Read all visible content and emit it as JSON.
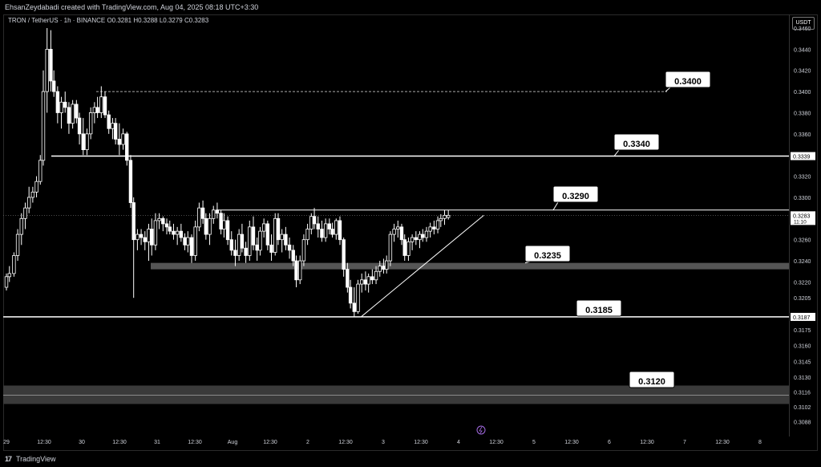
{
  "header": {
    "text": "EhsanZeydabadi created with TradingView.com, Aug 04, 2025 08:18 UTC+3:30"
  },
  "legend": {
    "text": "TRON / TetherUS · 1h · BINANCE  O0.3281  H0.3288  L0.3279  C0.3283"
  },
  "currency_button": "USDT",
  "footer": {
    "logo": "17",
    "brand": "TradingView"
  },
  "colors": {
    "background": "#000000",
    "candle": "#ffffff",
    "level_line": "#ffffff",
    "zone": "#3a3a3a",
    "axis_text": "#d1d4dc"
  },
  "chart_data": {
    "type": "candlestick",
    "title": "",
    "xlabel": "",
    "ylabel": "",
    "ylim": [
      0.308,
      0.346
    ],
    "y_ticks": [
      "0.3460",
      "0.3440",
      "0.3420",
      "0.3400",
      "0.3380",
      "0.3360",
      "0.3339",
      "0.3320",
      "0.3300",
      "0.3283",
      "0.3260",
      "0.3240",
      "0.3220",
      "0.3205",
      "0.3187",
      "0.3175",
      "0.3160",
      "0.3145",
      "0.3130",
      "0.3116",
      "0.3102",
      "0.3088"
    ],
    "x_ticks": [
      "29",
      "12:30",
      "30",
      "12:30",
      "31",
      "12:30",
      "Aug",
      "12:30",
      "2",
      "12:30",
      "3",
      "12:30",
      "4",
      "12:30",
      "5",
      "12:30",
      "6",
      "12:30",
      "7",
      "12:30",
      "8"
    ],
    "price_tags": [
      {
        "text": "0.3339",
        "value": 0.3339
      },
      {
        "text": "0.3283",
        "value": 0.3283,
        "countdown": "11:10"
      },
      {
        "text": "0.3187",
        "value": 0.3187
      }
    ],
    "levels": [
      {
        "label": "0.3400",
        "value": 0.34,
        "style": "dashed"
      },
      {
        "label": "0.3340",
        "value": 0.3339,
        "style": "solid"
      },
      {
        "label": "0.3290",
        "value": 0.3288,
        "style": "solid"
      },
      {
        "label": "0.3235",
        "value": 0.3235,
        "style": "zone"
      },
      {
        "label": "0.3185",
        "value": 0.3187,
        "style": "solid"
      },
      {
        "label": "0.3120",
        "value": 0.3113,
        "style": "zone"
      }
    ],
    "trendline": {
      "from": {
        "x": 47.1,
        "y": 0.3187
      },
      "to": {
        "x": 63.4,
        "y": 0.3283
      }
    },
    "candles": [
      [
        0.0,
        0.3215,
        0.3228,
        0.3212,
        0.3225
      ],
      [
        0.4,
        0.3225,
        0.3235,
        0.322,
        0.3228
      ],
      [
        1.0,
        0.3228,
        0.3248,
        0.3225,
        0.3245
      ],
      [
        1.5,
        0.3245,
        0.327,
        0.324,
        0.3265
      ],
      [
        2.0,
        0.3265,
        0.3285,
        0.3255,
        0.328
      ],
      [
        2.5,
        0.328,
        0.3295,
        0.327,
        0.329
      ],
      [
        3.0,
        0.329,
        0.331,
        0.3285,
        0.33
      ],
      [
        3.5,
        0.33,
        0.331,
        0.3295,
        0.3305
      ],
      [
        4.0,
        0.3305,
        0.332,
        0.33,
        0.3315
      ],
      [
        4.5,
        0.3315,
        0.334,
        0.3312,
        0.3335
      ],
      [
        4.9,
        0.3335,
        0.342,
        0.333,
        0.34
      ],
      [
        5.4,
        0.34,
        0.346,
        0.338,
        0.344
      ],
      [
        5.9,
        0.344,
        0.3458,
        0.34,
        0.341
      ],
      [
        6.3,
        0.341,
        0.342,
        0.3395,
        0.34
      ],
      [
        6.8,
        0.34,
        0.3405,
        0.337,
        0.338
      ],
      [
        7.3,
        0.338,
        0.3395,
        0.3365,
        0.339
      ],
      [
        7.8,
        0.339,
        0.34,
        0.338,
        0.3385
      ],
      [
        8.3,
        0.3385,
        0.339,
        0.336,
        0.337
      ],
      [
        8.8,
        0.337,
        0.3392,
        0.3365,
        0.3388
      ],
      [
        9.3,
        0.3388,
        0.3392,
        0.337,
        0.3375
      ],
      [
        9.7,
        0.3375,
        0.338,
        0.335,
        0.336
      ],
      [
        10.2,
        0.336,
        0.3375,
        0.334,
        0.3345
      ],
      [
        10.7,
        0.3345,
        0.3365,
        0.334,
        0.336
      ],
      [
        11.2,
        0.336,
        0.3385,
        0.3355,
        0.338
      ],
      [
        11.7,
        0.338,
        0.339,
        0.337,
        0.3385
      ],
      [
        12.1,
        0.3385,
        0.3395,
        0.3375,
        0.338
      ],
      [
        12.6,
        0.338,
        0.3405,
        0.3375,
        0.3395
      ],
      [
        13.1,
        0.3395,
        0.34,
        0.3375,
        0.3378
      ],
      [
        13.6,
        0.3378,
        0.3382,
        0.336,
        0.3365
      ],
      [
        14.1,
        0.3365,
        0.3375,
        0.3355,
        0.337
      ],
      [
        14.5,
        0.337,
        0.3375,
        0.335,
        0.3355
      ],
      [
        15.0,
        0.3355,
        0.337,
        0.334,
        0.335
      ],
      [
        15.5,
        0.335,
        0.3365,
        0.3345,
        0.336
      ],
      [
        16.0,
        0.336,
        0.3362,
        0.333,
        0.3335
      ],
      [
        16.5,
        0.3335,
        0.334,
        0.329,
        0.3295
      ],
      [
        16.9,
        0.3295,
        0.33,
        0.3205,
        0.326
      ],
      [
        17.4,
        0.326,
        0.327,
        0.325,
        0.3265
      ],
      [
        17.9,
        0.3265,
        0.327,
        0.3255,
        0.3262
      ],
      [
        18.4,
        0.3262,
        0.3268,
        0.325,
        0.3258
      ],
      [
        18.9,
        0.3258,
        0.3275,
        0.324,
        0.327
      ],
      [
        19.3,
        0.327,
        0.328,
        0.3245,
        0.3255
      ],
      [
        19.8,
        0.3255,
        0.3285,
        0.325,
        0.3278
      ],
      [
        20.3,
        0.3278,
        0.3285,
        0.327,
        0.328
      ],
      [
        20.8,
        0.328,
        0.3282,
        0.3268,
        0.3275
      ],
      [
        21.3,
        0.3275,
        0.328,
        0.3265,
        0.3272
      ],
      [
        21.7,
        0.3272,
        0.3278,
        0.3265,
        0.3268
      ],
      [
        22.2,
        0.3268,
        0.3275,
        0.326,
        0.3265
      ],
      [
        22.7,
        0.3265,
        0.3272,
        0.3255,
        0.3268
      ],
      [
        23.2,
        0.3268,
        0.3275,
        0.3258,
        0.3262
      ],
      [
        23.7,
        0.3262,
        0.3266,
        0.325,
        0.3255
      ],
      [
        24.1,
        0.3255,
        0.3268,
        0.3248,
        0.3262
      ],
      [
        24.6,
        0.3262,
        0.3265,
        0.3238,
        0.3245
      ],
      [
        25.1,
        0.3245,
        0.3278,
        0.324,
        0.3272
      ],
      [
        25.6,
        0.3272,
        0.3295,
        0.3268,
        0.329
      ],
      [
        26.1,
        0.329,
        0.3297,
        0.3275,
        0.328
      ],
      [
        26.5,
        0.328,
        0.3285,
        0.326,
        0.3265
      ],
      [
        27.0,
        0.3265,
        0.3285,
        0.3255,
        0.328
      ],
      [
        27.5,
        0.328,
        0.3292,
        0.3275,
        0.3288
      ],
      [
        28.0,
        0.3288,
        0.3295,
        0.328,
        0.3285
      ],
      [
        28.5,
        0.3285,
        0.3288,
        0.3265,
        0.327
      ],
      [
        28.9,
        0.327,
        0.3285,
        0.3262,
        0.3278
      ],
      [
        29.4,
        0.3278,
        0.3282,
        0.3255,
        0.326
      ],
      [
        29.9,
        0.326,
        0.3268,
        0.3245,
        0.325
      ],
      [
        30.4,
        0.325,
        0.326,
        0.3235,
        0.3245
      ],
      [
        30.9,
        0.3245,
        0.327,
        0.324,
        0.3265
      ],
      [
        31.3,
        0.3265,
        0.3275,
        0.3248,
        0.3252
      ],
      [
        31.8,
        0.3252,
        0.3258,
        0.3238,
        0.3245
      ],
      [
        32.3,
        0.3245,
        0.3278,
        0.324,
        0.3272
      ],
      [
        32.8,
        0.3272,
        0.3282,
        0.325,
        0.3255
      ],
      [
        33.3,
        0.3255,
        0.3262,
        0.324,
        0.325
      ],
      [
        33.7,
        0.325,
        0.3272,
        0.3245,
        0.3268
      ],
      [
        34.2,
        0.3268,
        0.328,
        0.3262,
        0.3275
      ],
      [
        34.7,
        0.3275,
        0.3278,
        0.325,
        0.3255
      ],
      [
        35.2,
        0.3255,
        0.3265,
        0.324,
        0.3248
      ],
      [
        35.7,
        0.3248,
        0.3285,
        0.3245,
        0.328
      ],
      [
        36.1,
        0.328,
        0.3285,
        0.3255,
        0.326
      ],
      [
        36.6,
        0.326,
        0.327,
        0.3248,
        0.3265
      ],
      [
        37.1,
        0.3265,
        0.3272,
        0.325,
        0.3255
      ],
      [
        37.6,
        0.3255,
        0.3262,
        0.3242,
        0.325
      ],
      [
        38.1,
        0.325,
        0.3255,
        0.3235,
        0.324
      ],
      [
        38.5,
        0.324,
        0.3245,
        0.3215,
        0.3222
      ],
      [
        39.0,
        0.3222,
        0.3245,
        0.3218,
        0.324
      ],
      [
        39.5,
        0.324,
        0.3265,
        0.3235,
        0.326
      ],
      [
        40.0,
        0.326,
        0.3275,
        0.3255,
        0.327
      ],
      [
        40.5,
        0.327,
        0.3285,
        0.3265,
        0.3282
      ],
      [
        40.9,
        0.3282,
        0.329,
        0.327,
        0.3275
      ],
      [
        41.4,
        0.3275,
        0.3282,
        0.3262,
        0.327
      ],
      [
        41.9,
        0.327,
        0.3278,
        0.3258,
        0.3262
      ],
      [
        42.4,
        0.3262,
        0.328,
        0.3258,
        0.3275
      ],
      [
        42.9,
        0.3275,
        0.328,
        0.3265,
        0.327
      ],
      [
        43.3,
        0.327,
        0.3276,
        0.3262,
        0.3265
      ],
      [
        43.8,
        0.3265,
        0.328,
        0.326,
        0.3278
      ],
      [
        44.3,
        0.3278,
        0.3282,
        0.3255,
        0.326
      ],
      [
        44.8,
        0.326,
        0.3262,
        0.3225,
        0.3232
      ],
      [
        45.3,
        0.3232,
        0.3238,
        0.321,
        0.3215
      ],
      [
        45.7,
        0.3215,
        0.3222,
        0.3195,
        0.32
      ],
      [
        46.2,
        0.32,
        0.3215,
        0.3187,
        0.3192
      ],
      [
        46.7,
        0.3192,
        0.3222,
        0.319,
        0.3218
      ],
      [
        47.2,
        0.3218,
        0.3228,
        0.321,
        0.3222
      ],
      [
        47.7,
        0.3222,
        0.323,
        0.3212,
        0.3218
      ],
      [
        48.1,
        0.3218,
        0.3228,
        0.321,
        0.3225
      ],
      [
        48.6,
        0.3225,
        0.3232,
        0.3218,
        0.3222
      ],
      [
        49.1,
        0.3222,
        0.3235,
        0.3218,
        0.323
      ],
      [
        49.6,
        0.323,
        0.324,
        0.3225,
        0.3235
      ],
      [
        50.1,
        0.3235,
        0.3242,
        0.3228,
        0.3232
      ],
      [
        50.5,
        0.3232,
        0.3245,
        0.3228,
        0.324
      ],
      [
        51.0,
        0.324,
        0.3268,
        0.3235,
        0.3265
      ],
      [
        51.5,
        0.3265,
        0.3275,
        0.3258,
        0.327
      ],
      [
        52.0,
        0.327,
        0.3278,
        0.3262,
        0.3272
      ],
      [
        52.5,
        0.3272,
        0.3275,
        0.3255,
        0.326
      ],
      [
        52.9,
        0.326,
        0.3265,
        0.324,
        0.3245
      ],
      [
        53.4,
        0.3245,
        0.3262,
        0.324,
        0.3258
      ],
      [
        53.9,
        0.3258,
        0.3265,
        0.325,
        0.3262
      ],
      [
        54.4,
        0.3262,
        0.3268,
        0.3255,
        0.326
      ],
      [
        54.9,
        0.326,
        0.3268,
        0.3252,
        0.3265
      ],
      [
        55.3,
        0.3265,
        0.327,
        0.3258,
        0.3262
      ],
      [
        55.8,
        0.3262,
        0.3272,
        0.3258,
        0.3268
      ],
      [
        56.3,
        0.3268,
        0.3276,
        0.3262,
        0.3272
      ],
      [
        56.8,
        0.3272,
        0.3278,
        0.3265,
        0.327
      ],
      [
        57.3,
        0.327,
        0.3282,
        0.3266,
        0.3278
      ],
      [
        57.7,
        0.3278,
        0.3284,
        0.3272,
        0.328
      ],
      [
        58.2,
        0.328,
        0.3288,
        0.3274,
        0.3283
      ],
      [
        58.7,
        0.3281,
        0.3288,
        0.3279,
        0.3283
      ]
    ]
  }
}
